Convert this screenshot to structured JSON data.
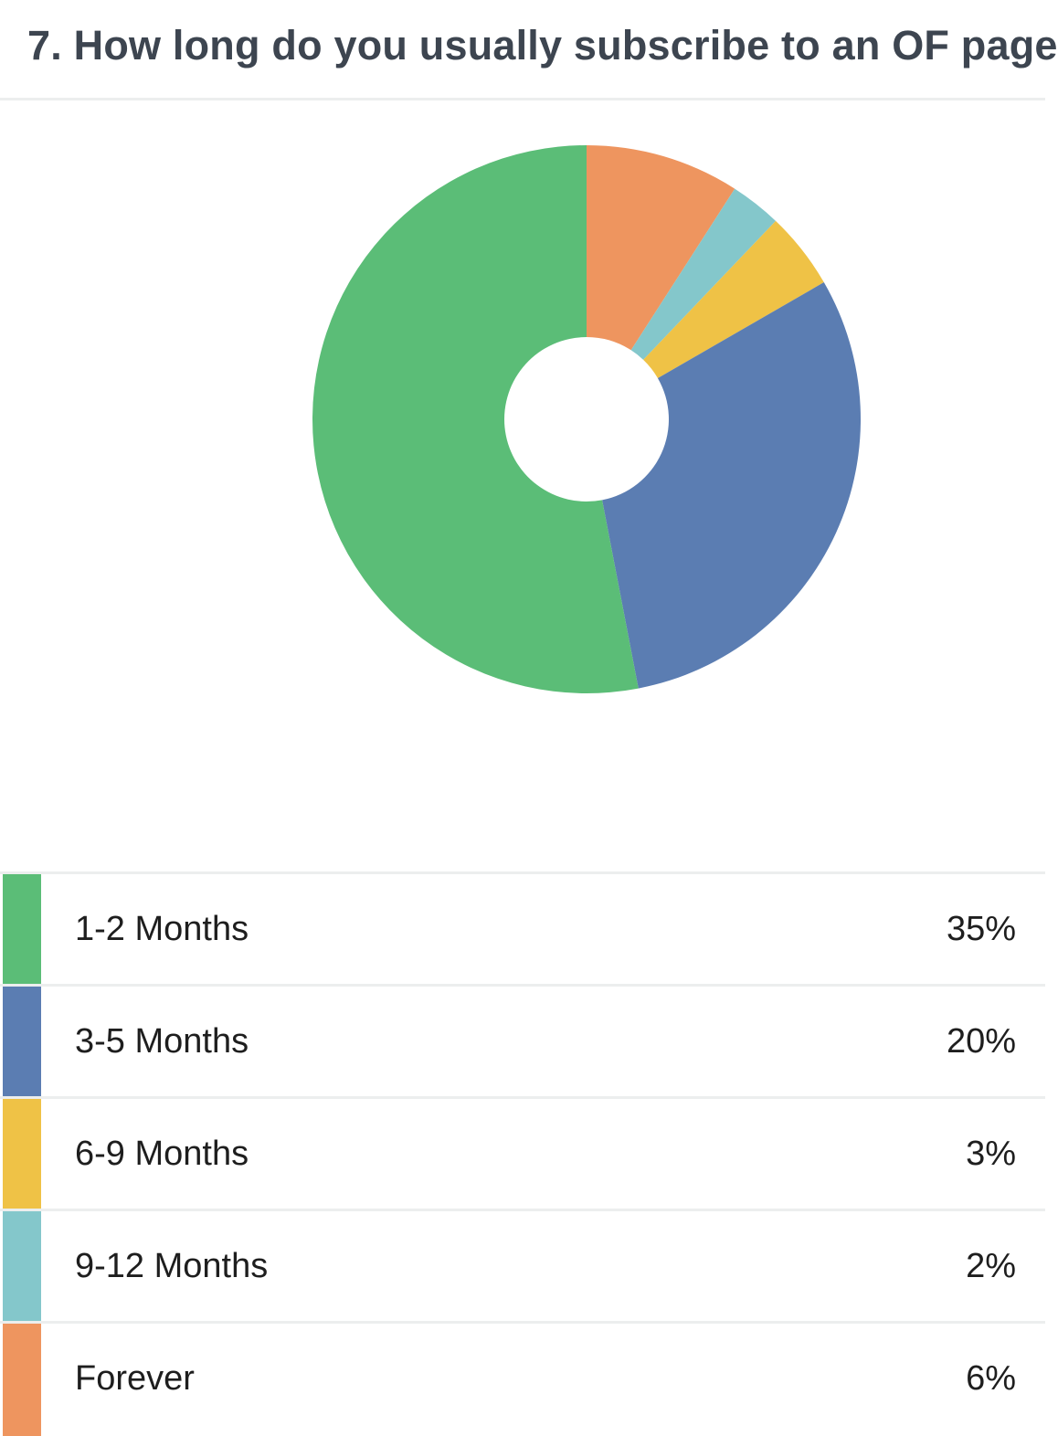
{
  "question": {
    "title": "7. How long do you usually subscribe to an OF page"
  },
  "chart_data": {
    "type": "pie",
    "title": "7. How long do you usually subscribe to an OF page",
    "donut": true,
    "categories": [
      "1-2 Months",
      "3-5 Months",
      "6-9 Months",
      "9-12 Months",
      "Forever"
    ],
    "values": [
      35,
      20,
      3,
      2,
      6
    ],
    "value_labels": [
      "35%",
      "20%",
      "3%",
      "2%",
      "6%"
    ],
    "colors": [
      "#5bbd77",
      "#5b7db2",
      "#efc246",
      "#84c7cb",
      "#ee955f"
    ],
    "legend": "bottom",
    "legend_entries": [
      {
        "label": "1-2 Months",
        "value": "35%",
        "color": "#5bbd77"
      },
      {
        "label": "3-5 Months",
        "value": "20%",
        "color": "#5b7db2"
      },
      {
        "label": "6-9 Months",
        "value": "3%",
        "color": "#efc246"
      },
      {
        "label": "9-12 Months",
        "value": "2%",
        "color": "#84c7cb"
      },
      {
        "label": "Forever",
        "value": "6%",
        "color": "#ee955f"
      }
    ]
  }
}
